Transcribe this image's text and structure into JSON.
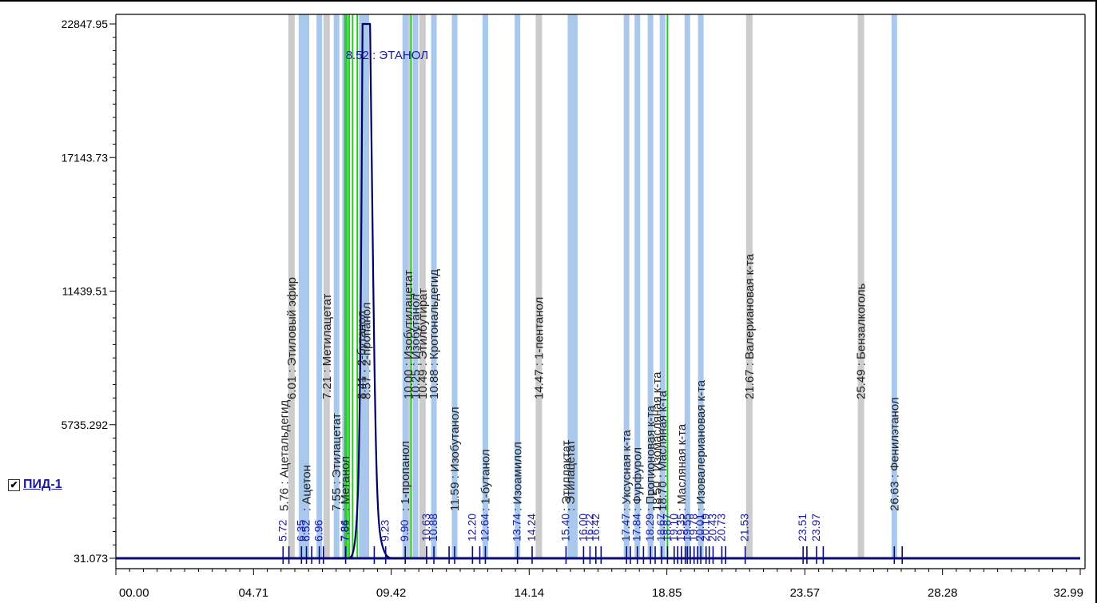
{
  "detector": {
    "label": "ПИД-1",
    "checked": true,
    "check_glyph": "✔"
  },
  "colors": {
    "trace": "#000066",
    "baseline": "#0a0a7a",
    "blue_band": "#a9c8ec",
    "gray_band": "#cccccc",
    "green_line": "#22cc22",
    "label_peak": "#1a1a9e",
    "label_std": "#222222"
  },
  "chart_data": {
    "type": "line",
    "title": "",
    "xlabel": "",
    "ylabel": "",
    "xlim": [
      0,
      32.99
    ],
    "ylim": [
      31.073,
      22847.95
    ],
    "x_ticks": [
      "00.00",
      "04.71",
      "09.42",
      "14.14",
      "18.85",
      "23.57",
      "28.28",
      "32.99"
    ],
    "y_ticks": [
      "22847.95",
      "17143.73",
      "11439.51",
      "5735.292",
      "31.073"
    ],
    "peak_labels": [
      {
        "x": 5.72,
        "text": "5.72"
      },
      {
        "x": 6.35,
        "text": "6.35"
      },
      {
        "x": 6.52,
        "text": "6.52"
      },
      {
        "x": 6.96,
        "text": "6.96"
      },
      {
        "x": 7.86,
        "text": "7.86"
      },
      {
        "x": 7.84,
        "text": "7.84"
      },
      {
        "x": 9.23,
        "text": "9.23"
      },
      {
        "x": 9.9,
        "text": "9.90"
      },
      {
        "x": 10.63,
        "text": "10.63"
      },
      {
        "x": 10.88,
        "text": "10.88"
      },
      {
        "x": 12.2,
        "text": "12.20"
      },
      {
        "x": 12.64,
        "text": "12.64"
      },
      {
        "x": 13.74,
        "text": "13.74"
      },
      {
        "x": 14.24,
        "text": "14.24"
      },
      {
        "x": 15.4,
        "text": "15.40"
      },
      {
        "x": 16.0,
        "text": "16.00"
      },
      {
        "x": 16.22,
        "text": "16.22"
      },
      {
        "x": 16.42,
        "text": "16.42"
      },
      {
        "x": 17.47,
        "text": "17.47"
      },
      {
        "x": 17.84,
        "text": "17.84"
      },
      {
        "x": 18.29,
        "text": "18.29"
      },
      {
        "x": 18.67,
        "text": "18.67"
      },
      {
        "x": 18.87,
        "text": "18.87"
      },
      {
        "x": 19.1,
        "text": "19.10"
      },
      {
        "x": 19.35,
        "text": "19.35"
      },
      {
        "x": 19.55,
        "text": "19.55"
      },
      {
        "x": 19.78,
        "text": "19.78"
      },
      {
        "x": 20.01,
        "text": "20.01"
      },
      {
        "x": 20.19,
        "text": "20.19"
      },
      {
        "x": 20.43,
        "text": "20.43"
      },
      {
        "x": 20.73,
        "text": "20.73"
      },
      {
        "x": 21.53,
        "text": "21.53"
      },
      {
        "x": 23.51,
        "text": "23.51"
      },
      {
        "x": 23.97,
        "text": "23.97"
      }
    ],
    "component_labels": [
      {
        "x": 5.76,
        "y": 200,
        "text": "5.76 : Ацетальдегид"
      },
      {
        "x": 6.01,
        "y": 6000,
        "text": "6.01 : Этиловый эфир"
      },
      {
        "x": 6.52,
        "y": 200,
        "text": ": Ацетон"
      },
      {
        "x": 7.21,
        "y": 6000,
        "text": "7.21 : Метилацетат"
      },
      {
        "x": 7.55,
        "y": 200,
        "text": "7.55 : Этилацетат"
      },
      {
        "x": 7.84,
        "y": 200,
        "text": ": Метанол"
      },
      {
        "x": 8.52,
        "y": 21350,
        "text": "8.52 : ЭТАНОЛ",
        "horizontal": true
      },
      {
        "x": 8.41,
        "y": 8200,
        "text": "8.41 : 2-бутанол"
      },
      {
        "x": 8.57,
        "y": 8200,
        "text": "8.57 : 2-пропанол"
      },
      {
        "x": 9.9,
        "y": 200,
        "text": ": 1-пропанол"
      },
      {
        "x": 10.0,
        "y": 6000,
        "text": "10.00 : Изобутилацетат"
      },
      {
        "x": 10.25,
        "y": 6000,
        "text": "10.25 : Изобутанол"
      },
      {
        "x": 10.49,
        "y": 6000,
        "text": "10.49 : Этилбутират"
      },
      {
        "x": 10.88,
        "y": 6000,
        "text": "10.88 : Кротональдегид"
      },
      {
        "x": 11.59,
        "y": 200,
        "text": "11.59 : Изобутанол"
      },
      {
        "x": 12.64,
        "y": 200,
        "text": ": 1-бутанол"
      },
      {
        "x": 13.74,
        "y": 200,
        "text": ": Изоамилол"
      },
      {
        "x": 14.47,
        "y": 6000,
        "text": "14.47 : 1-пентанол"
      },
      {
        "x": 15.4,
        "y": 200,
        "text": ": Этиллактат"
      },
      {
        "x": 15.55,
        "y": 200,
        "text": ": Этилацетат"
      },
      {
        "x": 17.47,
        "y": 200,
        "text": ": Уксусная к-та"
      },
      {
        "x": 17.84,
        "y": 200,
        "text": ": Фурфурол"
      },
      {
        "x": 18.29,
        "y": 200,
        "text": ": Пропионовая к-та"
      },
      {
        "x": 18.5,
        "y": 200,
        "text": "18.50 : Изомасляная к-та"
      },
      {
        "x": 18.7,
        "y": 200,
        "text": "18.70 : Масляная к-та"
      },
      {
        "x": 19.35,
        "y": 200,
        "text": ": Масляная к-та"
      },
      {
        "x": 20.01,
        "y": 200,
        "text": ": Изовалериановая к-та"
      },
      {
        "x": 21.67,
        "y": 6000,
        "text": "21.67 : Валериановая к-та"
      },
      {
        "x": 25.49,
        "y": 6000,
        "text": "25.49 : Бензалкоголь"
      },
      {
        "x": 26.63,
        "y": 200,
        "text": "26.63 : Фенилэтанол"
      }
    ],
    "blue_bands": [
      6.35,
      6.52,
      6.96,
      7.55,
      7.84,
      8.41,
      8.57,
      9.9,
      10.25,
      10.88,
      11.59,
      12.64,
      13.74,
      15.55,
      15.7,
      17.47,
      17.84,
      18.29,
      18.7,
      19.55,
      20.01,
      26.63
    ],
    "gray_bands": [
      6.01,
      7.21,
      10.0,
      10.49,
      14.47,
      21.67,
      25.49
    ],
    "green_lines": [
      7.84,
      7.9,
      7.98,
      8.1,
      8.26,
      10.1,
      18.87
    ],
    "peaks": [
      {
        "x": 8.52,
        "h": 22847.95,
        "w": 0.12
      },
      {
        "x": 8.64,
        "h": 18000,
        "w": 0.18
      },
      {
        "x": 8.4,
        "h": 3200,
        "w": 0.18
      },
      {
        "x": 8.75,
        "h": 3900,
        "w": 0.16
      },
      {
        "x": 8.95,
        "h": 900,
        "w": 0.22
      }
    ],
    "marker_positions": [
      5.72,
      5.92,
      6.35,
      6.52,
      6.7,
      6.96,
      7.1,
      7.86,
      8.84,
      9.23,
      9.9,
      10.63,
      10.88,
      11.4,
      11.59,
      12.2,
      12.45,
      12.64,
      13.74,
      14.24,
      15.4,
      16.0,
      16.22,
      16.42,
      16.6,
      17.47,
      17.6,
      17.84,
      18.05,
      18.29,
      18.45,
      18.67,
      18.87,
      19.1,
      19.22,
      19.35,
      19.48,
      19.55,
      19.65,
      19.78,
      19.9,
      20.01,
      20.19,
      20.3,
      20.43,
      20.73,
      20.86,
      21.53,
      23.51,
      23.64,
      23.97,
      24.2,
      26.63,
      26.9
    ]
  }
}
